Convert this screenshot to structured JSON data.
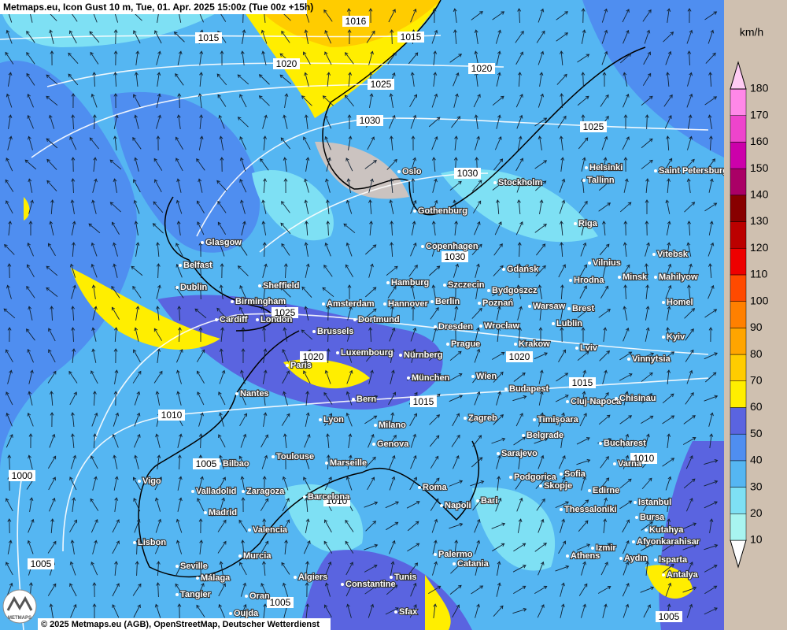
{
  "header": "Metmaps.eu, Icon Gust 10 m, Tue, 01. Apr. 2025 15:00z (Tue 00z +15h)",
  "footer": "© 2025 Metmaps.eu (AGB), OpenStreetMap, Deutscher Wetterdienst",
  "logo": "METMAPS",
  "legend": {
    "unit": "km/h",
    "ticks": [
      10,
      20,
      30,
      40,
      50,
      60,
      70,
      80,
      90,
      100,
      110,
      120,
      130,
      140,
      150,
      160,
      170,
      180
    ],
    "colors": [
      "#ffffff",
      "#a8f4f0",
      "#7ee0f4",
      "#55b6f2",
      "#4f8ef0",
      "#5a64e0",
      "#ffee00",
      "#ffcc00",
      "#ffa500",
      "#ff8000",
      "#ff4a00",
      "#ee0000",
      "#bb0000",
      "#880000",
      "#aa0066",
      "#cc00aa",
      "#ee44cc",
      "#ff88e8",
      "#ffccf4"
    ]
  },
  "isobars": [
    1015,
    1016,
    1015,
    1020,
    1020,
    1025,
    1030,
    1025,
    1030,
    1030,
    1025,
    1020,
    1020,
    1015,
    1015,
    1010,
    1010,
    1005,
    1000,
    1010,
    1005,
    1005,
    1005
  ],
  "cities": [
    "Oslo",
    "Stockholm",
    "Helsinki",
    "Saint Petersburg",
    "Tallinn",
    "Gothenburg",
    "Riga",
    "Glasgow",
    "Copenhagen",
    "Belfast",
    "Gdańsk",
    "Vilnius",
    "Vitebsk",
    "Dublin",
    "Sheffield",
    "Hamburg",
    "Szczecin",
    "Bydgoszcz",
    "Hrodna",
    "Minsk",
    "Mahilyow",
    "Birmingham",
    "Amsterdam",
    "Hannover",
    "Berlin",
    "Poznań",
    "Warsaw",
    "Brest",
    "Homel",
    "Cardiff",
    "London",
    "Dortmund",
    "Lublin",
    "Brussels",
    "Dresden",
    "Wrocław",
    "Kyiv",
    "Luxembourg",
    "Prague",
    "Krakow",
    "Lviv",
    "Paris",
    "Nürnberg",
    "Vinnytsia",
    "München",
    "Wien",
    "Budapest",
    "Nantes",
    "Bern",
    "Cluj-Napoca",
    "Chisinau",
    "Lyon",
    "Zagreb",
    "Timișoara",
    "Milano",
    "Belgrade",
    "Bucharest",
    "Genova",
    "Sarajevo",
    "Varna",
    "Toulouse",
    "Marseille",
    "Bilbao",
    "Sofia",
    "Podgorica",
    "Skopje",
    "Vigo",
    "Valladolid",
    "Zaragoza",
    "Barcelona",
    "Roma",
    "Edirne",
    "Istanbul",
    "Bari",
    "Napoli",
    "Madrid",
    "Thessaloniki",
    "Bursa",
    "Valencia",
    "Kutahya",
    "Afyonkarahisar",
    "Lisbon",
    "Izmir",
    "Murcia",
    "Palermo",
    "Athens",
    "Aydın",
    "Isparta",
    "Seville",
    "Catania",
    "Málaga",
    "Algiers",
    "Tunis",
    "Antalya",
    "Tangier",
    "Oran",
    "Constantine",
    "Oujda",
    "Sfax"
  ]
}
